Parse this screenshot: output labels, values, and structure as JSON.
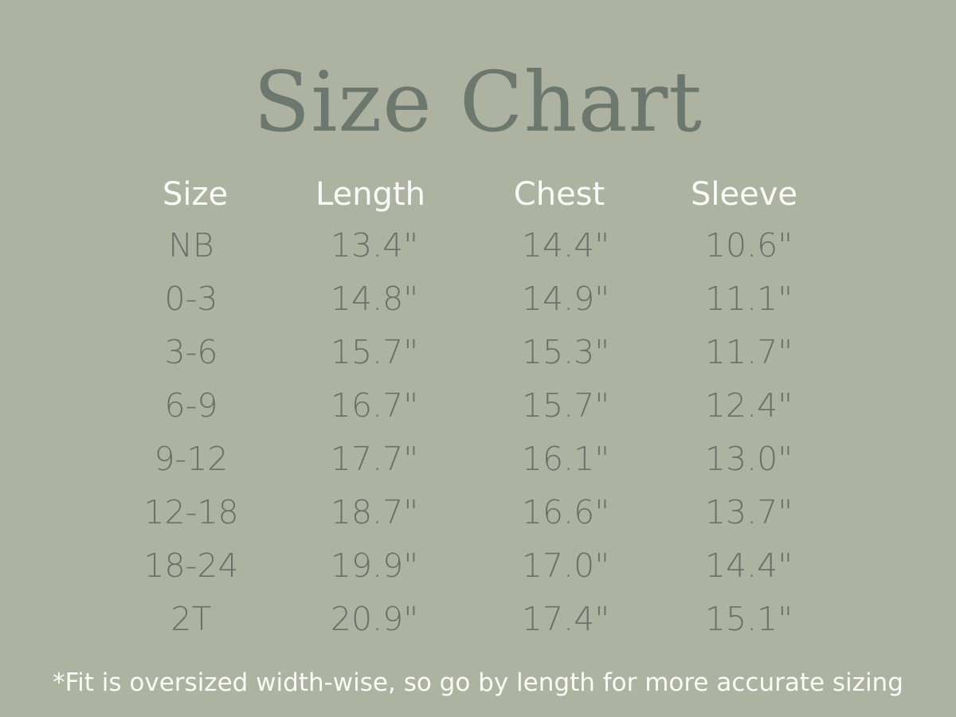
{
  "title": "Size Chart",
  "table": {
    "headers": [
      "Size",
      "Length",
      "Chest",
      "Sleeve"
    ],
    "rows": [
      [
        "NB",
        "13.4\"",
        "14.4\"",
        "10.6\""
      ],
      [
        "0-3",
        "14.8\"",
        "14.9\"",
        "11.1\""
      ],
      [
        "3-6",
        "15.7\"",
        "15.3\"",
        "11.7\""
      ],
      [
        "6-9",
        "16.7\"",
        "15.7\"",
        "12.4\""
      ],
      [
        "9-12",
        "17.7\"",
        "16.1\"",
        "13.0\""
      ],
      [
        "12-18",
        "18.7\"",
        "16.6\"",
        "13.7\""
      ],
      [
        "18-24",
        "19.9\"",
        "17.0\"",
        "14.4\""
      ],
      [
        "2T",
        "20.9\"",
        "17.4\"",
        "15.1\""
      ]
    ]
  },
  "note": "*Fit is oversized width-wise, so go by length for more accurate sizing",
  "colors": {
    "background": "#aeb2a1",
    "title": "#6c776d",
    "header_text": "#fbfbf7",
    "value_text": "#67716a"
  }
}
